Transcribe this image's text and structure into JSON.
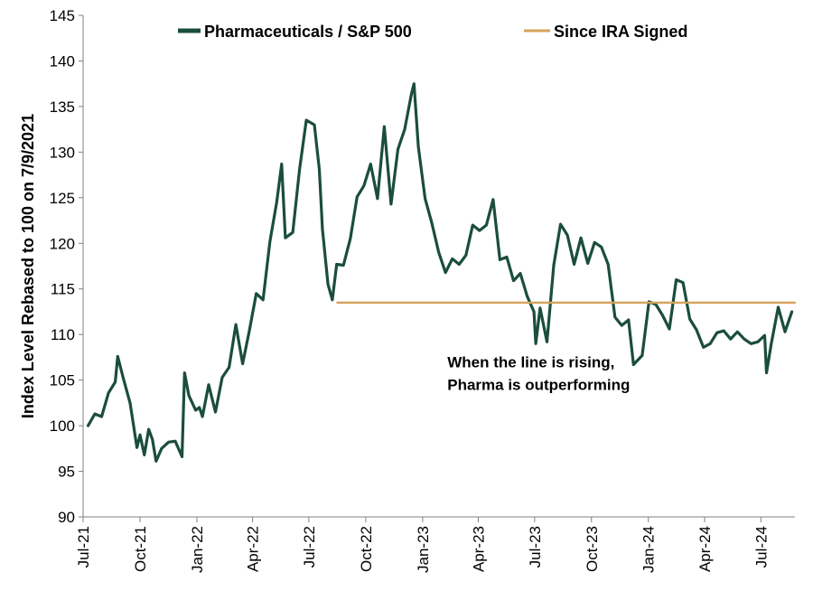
{
  "chart_data": {
    "type": "line",
    "title": "",
    "ylabel": "Index Level Rebased to 100 on 7/9/2021",
    "xlabel": "",
    "ylim": [
      90,
      145
    ],
    "yticks": [
      90,
      95,
      100,
      105,
      110,
      115,
      120,
      125,
      130,
      135,
      140,
      145
    ],
    "xlim": [
      "2021-07-01",
      "2024-08-25"
    ],
    "xticks": [
      {
        "label": "Jul-21",
        "date": "2021-07-01"
      },
      {
        "label": "Oct-21",
        "date": "2021-10-01"
      },
      {
        "label": "Jan-22",
        "date": "2022-01-01"
      },
      {
        "label": "Apr-22",
        "date": "2022-04-01"
      },
      {
        "label": "Jul-22",
        "date": "2022-07-01"
      },
      {
        "label": "Oct-22",
        "date": "2022-10-01"
      },
      {
        "label": "Jan-23",
        "date": "2023-01-01"
      },
      {
        "label": "Apr-23",
        "date": "2023-04-01"
      },
      {
        "label": "Jul-23",
        "date": "2023-07-01"
      },
      {
        "label": "Oct-23",
        "date": "2023-10-01"
      },
      {
        "label": "Jan-24",
        "date": "2024-01-01"
      },
      {
        "label": "Apr-24",
        "date": "2024-04-01"
      },
      {
        "label": "Jul-24",
        "date": "2024-07-01"
      }
    ],
    "grid": false,
    "legend_position": "top",
    "series": [
      {
        "name": "Pharmaceuticals /  S&P 500",
        "color": "#1b4d3e",
        "points": [
          [
            "2021-07-09",
            100.0
          ],
          [
            "2021-07-20",
            101.3
          ],
          [
            "2021-07-31",
            101.0
          ],
          [
            "2021-08-11",
            103.6
          ],
          [
            "2021-08-22",
            104.8
          ],
          [
            "2021-08-26",
            107.6
          ],
          [
            "2021-09-04",
            105.2
          ],
          [
            "2021-09-15",
            102.5
          ],
          [
            "2021-09-26",
            97.6
          ],
          [
            "2021-10-01",
            99.0
          ],
          [
            "2021-10-08",
            96.8
          ],
          [
            "2021-10-15",
            99.6
          ],
          [
            "2021-10-21",
            98.5
          ],
          [
            "2021-10-27",
            96.1
          ],
          [
            "2021-11-05",
            97.5
          ],
          [
            "2021-11-16",
            98.2
          ],
          [
            "2021-11-27",
            98.3
          ],
          [
            "2021-12-08",
            96.6
          ],
          [
            "2021-12-12",
            105.8
          ],
          [
            "2021-12-19",
            103.3
          ],
          [
            "2021-12-30",
            101.7
          ],
          [
            "2022-01-05",
            102.0
          ],
          [
            "2022-01-10",
            101.0
          ],
          [
            "2022-01-20",
            104.5
          ],
          [
            "2022-01-31",
            101.5
          ],
          [
            "2022-02-11",
            105.3
          ],
          [
            "2022-02-22",
            106.4
          ],
          [
            "2022-03-05",
            111.1
          ],
          [
            "2022-03-16",
            106.8
          ],
          [
            "2022-03-27",
            110.5
          ],
          [
            "2022-04-07",
            114.5
          ],
          [
            "2022-04-18",
            113.8
          ],
          [
            "2022-04-29",
            120.2
          ],
          [
            "2022-05-10",
            124.5
          ],
          [
            "2022-05-18",
            128.7
          ],
          [
            "2022-05-24",
            120.6
          ],
          [
            "2022-06-05",
            121.2
          ],
          [
            "2022-06-16",
            128.1
          ],
          [
            "2022-06-27",
            133.5
          ],
          [
            "2022-07-10",
            133.0
          ],
          [
            "2022-07-18",
            128.1
          ],
          [
            "2022-07-23",
            121.6
          ],
          [
            "2022-08-01",
            115.5
          ],
          [
            "2022-08-08",
            113.8
          ],
          [
            "2022-08-15",
            117.7
          ],
          [
            "2022-08-26",
            117.6
          ],
          [
            "2022-09-06",
            120.5
          ],
          [
            "2022-09-17",
            125.1
          ],
          [
            "2022-09-28",
            126.3
          ],
          [
            "2022-10-09",
            128.7
          ],
          [
            "2022-10-20",
            124.9
          ],
          [
            "2022-10-31",
            132.8
          ],
          [
            "2022-11-11",
            124.3
          ],
          [
            "2022-11-22",
            130.3
          ],
          [
            "2022-12-03",
            132.5
          ],
          [
            "2022-12-14",
            136.4
          ],
          [
            "2022-12-18",
            137.5
          ],
          [
            "2022-12-25",
            130.6
          ],
          [
            "2023-01-05",
            124.9
          ],
          [
            "2023-01-16",
            122.2
          ],
          [
            "2023-01-27",
            119.0
          ],
          [
            "2023-02-07",
            116.8
          ],
          [
            "2023-02-18",
            118.3
          ],
          [
            "2023-03-01",
            117.7
          ],
          [
            "2023-03-12",
            118.7
          ],
          [
            "2023-03-23",
            122.0
          ],
          [
            "2023-04-03",
            121.4
          ],
          [
            "2023-04-14",
            122.0
          ],
          [
            "2023-04-25",
            124.8
          ],
          [
            "2023-05-06",
            118.2
          ],
          [
            "2023-05-17",
            118.5
          ],
          [
            "2023-05-28",
            115.9
          ],
          [
            "2023-06-08",
            116.7
          ],
          [
            "2023-06-19",
            114.2
          ],
          [
            "2023-06-30",
            112.5
          ],
          [
            "2023-07-03",
            109.0
          ],
          [
            "2023-07-10",
            112.9
          ],
          [
            "2023-07-21",
            109.2
          ],
          [
            "2023-08-01",
            117.6
          ],
          [
            "2023-08-12",
            122.1
          ],
          [
            "2023-08-23",
            120.9
          ],
          [
            "2023-09-03",
            117.7
          ],
          [
            "2023-09-14",
            120.6
          ],
          [
            "2023-09-25",
            117.8
          ],
          [
            "2023-10-06",
            120.1
          ],
          [
            "2023-10-17",
            119.6
          ],
          [
            "2023-10-28",
            117.7
          ],
          [
            "2023-11-08",
            111.9
          ],
          [
            "2023-11-19",
            111.0
          ],
          [
            "2023-11-30",
            111.6
          ],
          [
            "2023-12-08",
            106.7
          ],
          [
            "2023-12-22",
            107.7
          ],
          [
            "2024-01-02",
            113.6
          ],
          [
            "2024-01-13",
            113.3
          ],
          [
            "2024-01-24",
            112.1
          ],
          [
            "2024-02-04",
            110.6
          ],
          [
            "2024-02-15",
            116.0
          ],
          [
            "2024-02-26",
            115.7
          ],
          [
            "2024-03-08",
            111.7
          ],
          [
            "2024-03-19",
            110.5
          ],
          [
            "2024-03-30",
            108.6
          ],
          [
            "2024-04-10",
            109.0
          ],
          [
            "2024-04-21",
            110.2
          ],
          [
            "2024-05-02",
            110.4
          ],
          [
            "2024-05-13",
            109.5
          ],
          [
            "2024-05-24",
            110.3
          ],
          [
            "2024-06-04",
            109.5
          ],
          [
            "2024-06-15",
            109.0
          ],
          [
            "2024-06-26",
            109.2
          ],
          [
            "2024-07-07",
            109.9
          ],
          [
            "2024-07-10",
            105.8
          ],
          [
            "2024-07-18",
            109.1
          ],
          [
            "2024-07-29",
            113.0
          ],
          [
            "2024-08-09",
            110.3
          ],
          [
            "2024-08-20",
            112.5
          ]
        ]
      },
      {
        "name": "Since IRA Signed",
        "color": "#d4a35a",
        "points": [
          [
            "2022-08-16",
            113.5
          ],
          [
            "2024-08-25",
            113.5
          ]
        ]
      }
    ],
    "annotations": [
      {
        "text": "When the line is rising,",
        "x": "2023-02-10",
        "y": 106.4
      },
      {
        "text": "Pharma is outperforming",
        "x": "2023-02-10",
        "y": 103.9
      }
    ]
  }
}
